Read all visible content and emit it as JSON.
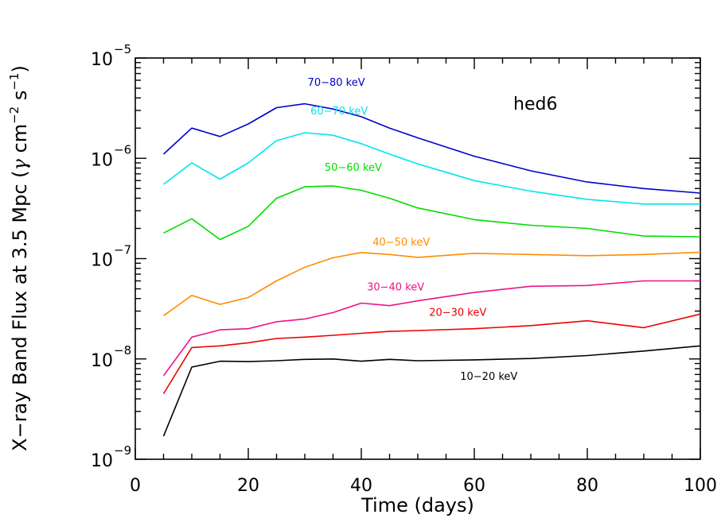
{
  "chart_data": {
    "type": "line",
    "title": "",
    "annotation": "hed6",
    "xlabel": "Time (days)",
    "ylabel_main": "X−ray Band Flux at 3.5 Mpc (",
    "ylabel_gamma": "γ",
    "ylabel_units": " cm",
    "ylabel_exp1": "−2",
    "ylabel_s": " s",
    "ylabel_exp2": "−1",
    "ylabel_close": ")",
    "xlim": [
      0,
      100
    ],
    "ylim": [
      1e-09,
      1e-05
    ],
    "yscale": "log",
    "xticks": [
      0,
      20,
      40,
      60,
      80,
      100
    ],
    "xtick_labels": [
      "0",
      "20",
      "40",
      "60",
      "80",
      "100"
    ],
    "ytick_base": "10",
    "ytick_exponents": [
      "−9",
      "−8",
      "−7",
      "−6",
      "−5"
    ],
    "grid": false,
    "series": [
      {
        "name": "70−80 keV",
        "color": "#0000cc",
        "x": [
          5,
          10,
          15,
          20,
          25,
          30,
          35,
          40,
          45,
          50,
          60,
          70,
          80,
          90,
          100
        ],
        "y": [
          1.1e-06,
          2e-06,
          1.65e-06,
          2.2e-06,
          3.2e-06,
          3.5e-06,
          3.1e-06,
          2.6e-06,
          2e-06,
          1.6e-06,
          1.05e-06,
          7.5e-07,
          5.8e-07,
          5e-07,
          4.5e-07
        ]
      },
      {
        "name": "60−70 keV",
        "color": "#00e5ee",
        "x": [
          5,
          10,
          15,
          20,
          25,
          30,
          35,
          40,
          45,
          50,
          60,
          70,
          80,
          90,
          100
        ],
        "y": [
          5.5e-07,
          9e-07,
          6.2e-07,
          9e-07,
          1.5e-06,
          1.8e-06,
          1.7e-06,
          1.4e-06,
          1.1e-06,
          8.8e-07,
          6e-07,
          4.7e-07,
          3.9e-07,
          3.5e-07,
          3.5e-07
        ]
      },
      {
        "name": "50−60 keV",
        "color": "#00dd00",
        "x": [
          5,
          10,
          15,
          20,
          25,
          30,
          35,
          40,
          45,
          50,
          60,
          70,
          80,
          90,
          100
        ],
        "y": [
          1.8e-07,
          2.5e-07,
          1.55e-07,
          2.1e-07,
          4e-07,
          5.2e-07,
          5.3e-07,
          4.8e-07,
          4e-07,
          3.2e-07,
          2.45e-07,
          2.15e-07,
          2e-07,
          1.68e-07,
          1.65e-07
        ]
      },
      {
        "name": "40−50 keV",
        "color": "#ff8c00",
        "x": [
          5,
          10,
          15,
          20,
          25,
          30,
          35,
          40,
          45,
          50,
          60,
          70,
          80,
          90,
          100
        ],
        "y": [
          2.7e-08,
          4.3e-08,
          3.5e-08,
          4.1e-08,
          6e-08,
          8.2e-08,
          1.02e-07,
          1.15e-07,
          1.1e-07,
          1.03e-07,
          1.13e-07,
          1.1e-07,
          1.07e-07,
          1.1e-07,
          1.16e-07
        ]
      },
      {
        "name": "30−40 keV",
        "color": "#ee1188",
        "x": [
          5,
          10,
          15,
          20,
          25,
          30,
          35,
          40,
          45,
          50,
          60,
          70,
          80,
          90,
          100
        ],
        "y": [
          6.8e-09,
          1.65e-08,
          1.95e-08,
          2e-08,
          2.35e-08,
          2.5e-08,
          2.9e-08,
          3.6e-08,
          3.4e-08,
          3.8e-08,
          4.6e-08,
          5.3e-08,
          5.4e-08,
          6e-08,
          6e-08
        ]
      },
      {
        "name": "20−30 keV",
        "color": "#ee0000",
        "x": [
          5,
          10,
          15,
          20,
          25,
          30,
          35,
          40,
          45,
          50,
          60,
          70,
          80,
          90,
          100
        ],
        "y": [
          4.5e-09,
          1.3e-08,
          1.35e-08,
          1.45e-08,
          1.6e-08,
          1.65e-08,
          1.72e-08,
          1.8e-08,
          1.88e-08,
          1.92e-08,
          2e-08,
          2.15e-08,
          2.4e-08,
          2.05e-08,
          2.8e-08
        ]
      },
      {
        "name": "10−20 keV",
        "color": "#000000",
        "x": [
          5,
          10,
          15,
          20,
          25,
          30,
          35,
          40,
          45,
          50,
          60,
          70,
          80,
          90,
          100
        ],
        "y": [
          1.7e-09,
          8.3e-09,
          9.5e-09,
          9.4e-09,
          9.6e-09,
          9.9e-09,
          1e-08,
          9.5e-09,
          9.9e-09,
          9.6e-09,
          9.8e-09,
          1.01e-08,
          1.08e-08,
          1.2e-08,
          1.35e-08
        ]
      }
    ],
    "labels": [
      {
        "text": "70−80 keV",
        "x": 30.5,
        "y": 5.3e-06,
        "series": 0
      },
      {
        "text": "60−70 keV",
        "x": 31,
        "y": 2.75e-06,
        "series": 1
      },
      {
        "text": "50−60 keV",
        "x": 33.5,
        "y": 7.5e-07,
        "series": 2
      },
      {
        "text": "40−50 keV",
        "x": 42,
        "y": 1.35e-07,
        "series": 3
      },
      {
        "text": "30−40 keV",
        "x": 41,
        "y": 4.8e-08,
        "series": 4
      },
      {
        "text": "20−30 keV",
        "x": 52,
        "y": 2.7e-08,
        "series": 5
      },
      {
        "text": "10−20 keV",
        "x": 57.5,
        "y": 6.2e-09,
        "series": 6
      }
    ]
  }
}
